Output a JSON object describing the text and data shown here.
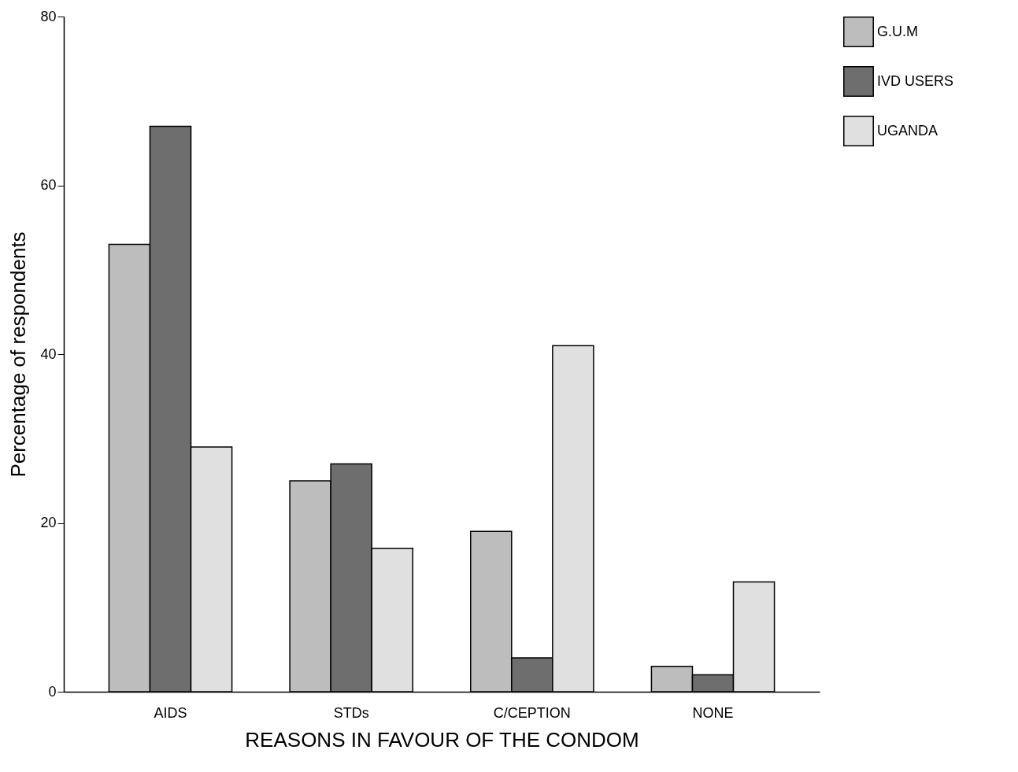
{
  "chart_data": {
    "type": "bar",
    "xlabel": "REASONS IN FAVOUR OF THE CONDOM",
    "ylabel": "Percentage of respondents",
    "categories": [
      "AIDS",
      "STDs",
      "C/CEPTION",
      "NONE"
    ],
    "series": [
      {
        "name": "G.U.M",
        "color": "#bdbdbd",
        "values": [
          53,
          25,
          19,
          3
        ]
      },
      {
        "name": "IVD USERS",
        "color": "#6e6e6e",
        "values": [
          67,
          27,
          4,
          2
        ]
      },
      {
        "name": "UGANDA",
        "color": "#e0e0e0",
        "values": [
          29,
          17,
          41,
          13
        ]
      }
    ],
    "ylim": [
      0,
      80
    ],
    "yticks": [
      0,
      20,
      40,
      60,
      80
    ],
    "grid": false,
    "legend": "top right"
  }
}
